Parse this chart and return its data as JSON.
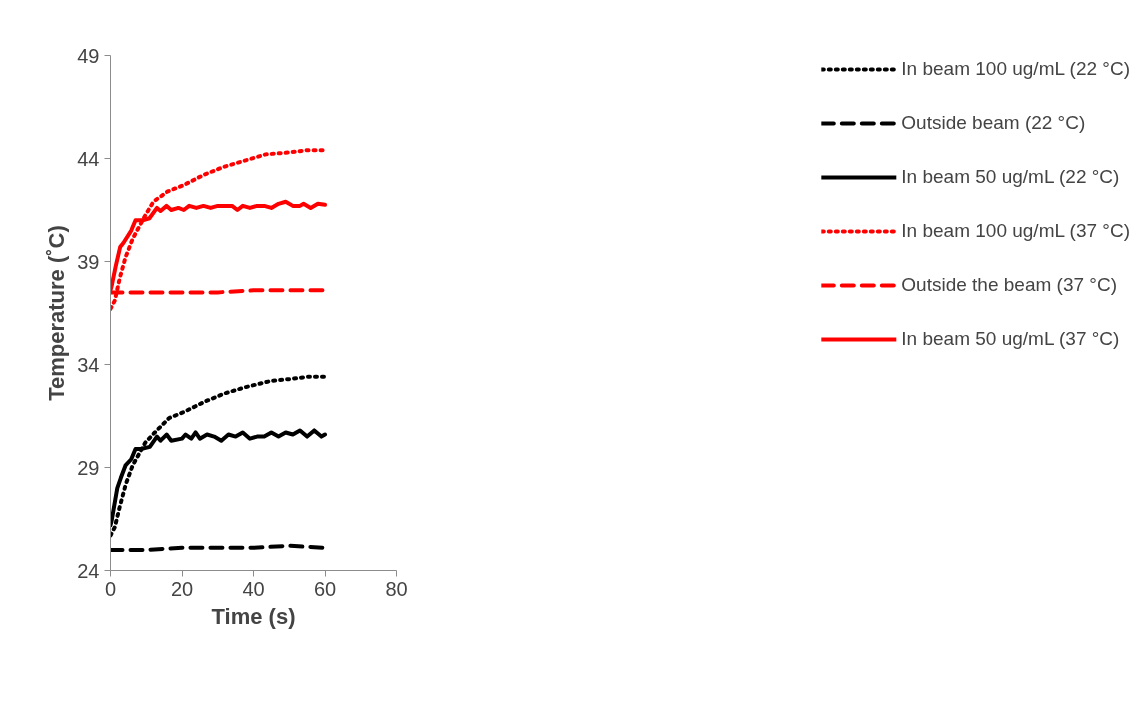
{
  "chart_data": {
    "type": "line",
    "xlabel": "Time (s)",
    "ylabel": "Temperature (˚C)",
    "xlim": [
      0,
      80
    ],
    "ylim": [
      24,
      49
    ],
    "xticks": [
      0,
      20,
      40,
      60,
      80
    ],
    "yticks": [
      24,
      29,
      34,
      39,
      44,
      49
    ],
    "grid": false,
    "legend": "right",
    "series": [
      {
        "name": "In beam 100 ug/mL (22 °C)",
        "color": "#000000",
        "line_style": "dotted",
        "x": [
          0,
          1.2,
          2.6,
          4.3,
          6.2,
          9.7,
          12.4,
          16.4,
          20.6,
          26.4,
          32,
          37.8,
          44.8,
          50.6,
          55,
          60
        ],
        "values": [
          25.7,
          26.1,
          27.1,
          28.2,
          29.1,
          30.2,
          30.7,
          31.4,
          31.7,
          32.2,
          32.6,
          32.9,
          33.2,
          33.3,
          33.4,
          33.4
        ]
      },
      {
        "name": "Outside beam (22 °C)",
        "color": "#000000",
        "line_style": "dashed",
        "x": [
          0,
          10,
          20,
          30,
          40,
          50,
          60
        ],
        "values": [
          25.0,
          25.0,
          25.1,
          25.1,
          25.1,
          25.2,
          25.1
        ]
      },
      {
        "name": "In beam 50 ug/mL (22 °C)",
        "color": "#000000",
        "line_style": "solid",
        "x": [
          0,
          0.3,
          1.9,
          2.9,
          4.2,
          5.8,
          7,
          8.5,
          11,
          13,
          14,
          15.7,
          17,
          20,
          21,
          22.6,
          23.8,
          25,
          27,
          29,
          31,
          33,
          35,
          37,
          39,
          41,
          43,
          45,
          47,
          49,
          51,
          53,
          55,
          57,
          59,
          60
        ],
        "values": [
          26.2,
          26.4,
          28.0,
          28.5,
          29.1,
          29.4,
          29.9,
          29.9,
          30.0,
          30.5,
          30.3,
          30.6,
          30.3,
          30.4,
          30.6,
          30.4,
          30.7,
          30.4,
          30.6,
          30.5,
          30.3,
          30.6,
          30.5,
          30.7,
          30.4,
          30.5,
          30.5,
          30.7,
          30.5,
          30.7,
          30.6,
          30.8,
          30.5,
          30.8,
          30.5,
          30.6
        ]
      },
      {
        "name": "In beam 100 ug/mL (37 °C)",
        "color": "#ff0000",
        "line_style": "dotted",
        "x": [
          0,
          1.2,
          2.6,
          4.2,
          6.2,
          9.6,
          12,
          16,
          20.4,
          26,
          31.8,
          37.6,
          43.4,
          50.4,
          55,
          60
        ],
        "values": [
          36.7,
          37.1,
          38.2,
          39.2,
          40.1,
          41.2,
          41.9,
          42.4,
          42.7,
          43.2,
          43.6,
          43.9,
          44.2,
          44.3,
          44.4,
          44.4
        ]
      },
      {
        "name": "Outside the beam (37 °C)",
        "color": "#ff0000",
        "line_style": "dashed",
        "x": [
          0,
          10,
          20,
          30,
          40,
          50,
          60
        ],
        "values": [
          37.5,
          37.5,
          37.5,
          37.5,
          37.6,
          37.6,
          37.6
        ]
      },
      {
        "name": "In beam 50 ug/mL (37 °C)",
        "color": "#ff0000",
        "line_style": "solid",
        "x": [
          0,
          0.3,
          1.5,
          2.7,
          3.6,
          5.8,
          7,
          9,
          10.9,
          13,
          14,
          15.7,
          17,
          19,
          20.5,
          22,
          24,
          26,
          28,
          30,
          32,
          34,
          35.5,
          37,
          39,
          41,
          43,
          45,
          47,
          49,
          51,
          53,
          54,
          56,
          58,
          60
        ],
        "values": [
          37.6,
          37.8,
          38.8,
          39.7,
          39.9,
          40.5,
          41.0,
          41.0,
          41.1,
          41.6,
          41.45,
          41.7,
          41.5,
          41.6,
          41.5,
          41.7,
          41.6,
          41.7,
          41.6,
          41.7,
          41.7,
          41.7,
          41.5,
          41.7,
          41.6,
          41.7,
          41.7,
          41.6,
          41.8,
          41.9,
          41.7,
          41.7,
          41.8,
          41.6,
          41.8,
          41.75
        ]
      }
    ]
  }
}
